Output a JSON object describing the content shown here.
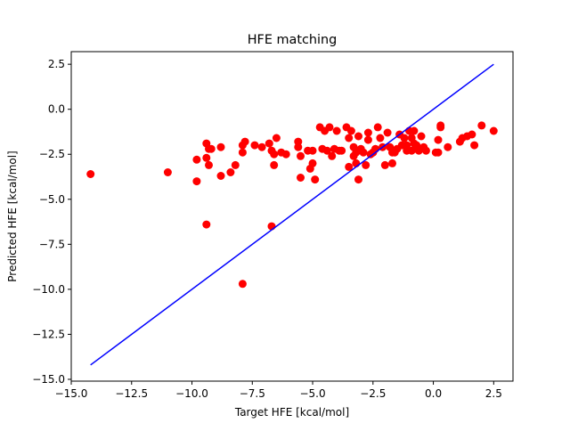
{
  "chart_data": {
    "type": "scatter",
    "title": "HFE matching",
    "xlabel": "Target HFE [kcal/mol]",
    "ylabel": "Predicted HFE [kcal/mol]",
    "xlim": [
      -15.0,
      3.3
    ],
    "ylim": [
      -15.1,
      3.2
    ],
    "xticks": [
      -15.0,
      -12.5,
      -10.0,
      -7.5,
      -5.0,
      -2.5,
      0.0,
      2.5
    ],
    "xtick_labels": [
      "−15.0",
      "−12.5",
      "−10.0",
      "−7.5",
      "−5.0",
      "−2.5",
      "0.0",
      "2.5"
    ],
    "yticks": [
      2.5,
      0.0,
      -2.5,
      -5.0,
      -7.5,
      -10.0,
      -12.5,
      -15.0
    ],
    "ytick_labels": [
      "2.5",
      "0.0",
      "−2.5",
      "−5.0",
      "−7.5",
      "−10.0",
      "−12.5",
      "−15.0"
    ],
    "grid": false,
    "colors": {
      "points": "#ff0000",
      "line": "#0000ff",
      "axes": "#000000"
    },
    "series": [
      {
        "kind": "points",
        "x": [
          -14.2,
          -11.0,
          -9.8,
          -9.8,
          -9.4,
          -9.4,
          -9.3,
          -9.3,
          -9.2,
          -8.8,
          -8.8,
          -8.4,
          -8.2,
          -7.8,
          -7.9,
          -7.9,
          -7.4,
          -7.1,
          -6.8,
          -6.6,
          -6.6,
          -6.7,
          -6.5,
          -6.3,
          -6.1,
          -5.6,
          -5.6,
          -5.5,
          -5.5,
          -5.2,
          -5.1,
          -5.0,
          -5.0,
          -4.9,
          -4.7,
          -4.6,
          -4.5,
          -4.4,
          -4.3,
          -4.2,
          -4.1,
          -4.0,
          -3.9,
          -3.8,
          -3.6,
          -3.5,
          -3.5,
          -3.4,
          -3.3,
          -3.3,
          -3.2,
          -3.2,
          -3.1,
          -3.1,
          -3.0,
          -2.9,
          -2.8,
          -2.7,
          -2.7,
          -2.6,
          -2.5,
          -2.5,
          -2.4,
          -2.3,
          -2.2,
          -2.1,
          -2.0,
          -1.9,
          -1.8,
          -1.7,
          -1.7,
          -1.6,
          -1.5,
          -1.4,
          -1.3,
          -1.2,
          -1.1,
          -1.1,
          -1.0,
          -0.9,
          -0.9,
          -0.8,
          -0.8,
          -0.7,
          -0.7,
          -0.6,
          -0.5,
          -0.4,
          -0.3,
          0.1,
          0.2,
          0.2,
          0.3,
          0.3,
          0.6,
          1.1,
          1.2,
          1.4,
          1.6,
          1.7,
          2.0,
          2.5,
          -7.9,
          -6.7,
          -9.4
        ],
        "y": [
          -3.6,
          -3.5,
          -2.8,
          -4.0,
          -1.9,
          -2.7,
          -2.2,
          -3.1,
          -2.2,
          -2.1,
          -3.7,
          -3.5,
          -3.1,
          -1.8,
          -2.4,
          -2.0,
          -2.0,
          -2.1,
          -1.9,
          -2.5,
          -3.1,
          -2.3,
          -1.6,
          -2.4,
          -2.5,
          -1.8,
          -2.1,
          -3.8,
          -2.6,
          -2.3,
          -3.3,
          -2.3,
          -3.0,
          -3.9,
          -1.0,
          -2.2,
          -1.2,
          -2.3,
          -1.0,
          -2.6,
          -2.2,
          -1.2,
          -2.3,
          -2.3,
          -1.0,
          -3.2,
          -1.6,
          -1.2,
          -2.6,
          -2.1,
          -3.0,
          -2.4,
          -3.9,
          -1.5,
          -2.2,
          -2.4,
          -3.1,
          -1.7,
          -1.3,
          -2.5,
          -2.4,
          -2.4,
          -2.2,
          -1.0,
          -1.6,
          -2.1,
          -3.1,
          -1.3,
          -2.1,
          -3.0,
          -2.4,
          -2.4,
          -2.2,
          -1.4,
          -2.0,
          -1.6,
          -2.3,
          -2.0,
          -1.2,
          -1.6,
          -2.3,
          -1.9,
          -1.2,
          -2.0,
          -2.2,
          -2.3,
          -1.5,
          -2.1,
          -2.3,
          -2.4,
          -1.7,
          -2.4,
          -0.9,
          -1.0,
          -2.1,
          -1.8,
          -1.6,
          -1.5,
          -1.4,
          -2.0,
          -0.9,
          -1.2,
          -9.7,
          -6.5,
          -6.4
        ]
      },
      {
        "kind": "line",
        "x": [
          -14.2,
          2.5
        ],
        "y": [
          -14.2,
          2.5
        ]
      }
    ]
  }
}
